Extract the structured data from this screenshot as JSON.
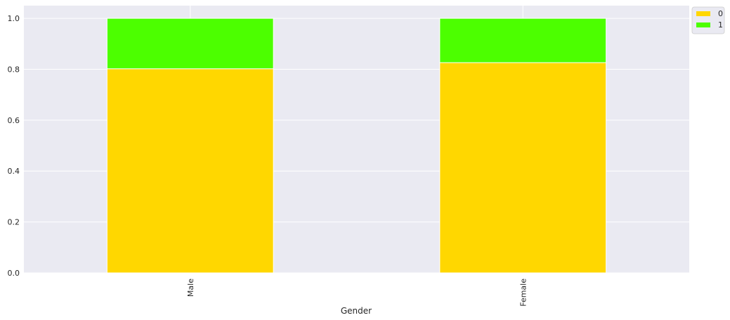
{
  "chart_data": {
    "type": "bar",
    "stacked": true,
    "categories": [
      "Male",
      "Female"
    ],
    "series": [
      {
        "name": "0",
        "values": [
          0.802,
          0.826
        ],
        "color": "#FFD700"
      },
      {
        "name": "1",
        "values": [
          0.198,
          0.174
        ],
        "color": "#4CFF00"
      }
    ],
    "xlabel": "Gender",
    "ylabel": "",
    "ylim": [
      0,
      1.05
    ],
    "yticks": [
      "0.0",
      "0.2",
      "0.4",
      "0.6",
      "0.8",
      "1.0"
    ],
    "grid": true,
    "legend_position": "outside top-right",
    "background": "#EAEAF2"
  }
}
